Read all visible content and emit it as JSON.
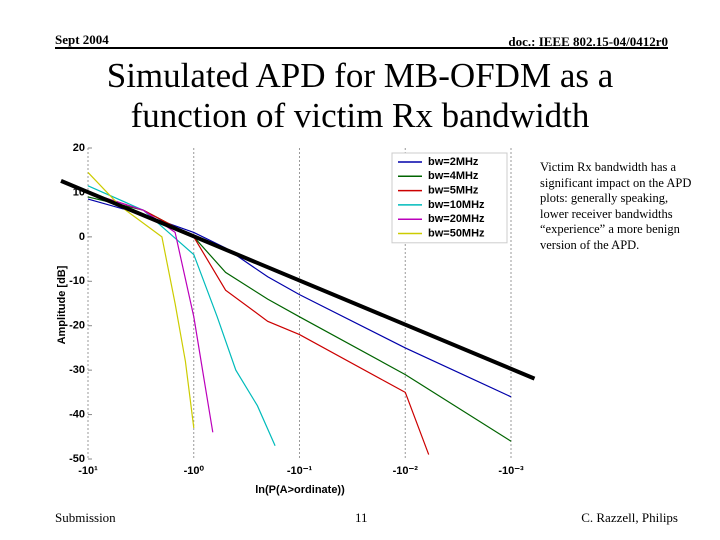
{
  "header": {
    "left": "Sept 2004",
    "right": "doc.: IEEE 802.15-04/0412r0"
  },
  "title_lines": [
    "Simulated APD for MB-OFDM as a",
    "function of victim Rx bandwidth"
  ],
  "side_text": "Victim Rx bandwidth has a significant impact on the APD plots: generally speaking, lower receiver bandwidths “experience” a more benign version of the APD.",
  "footer": {
    "left": "Submission",
    "center": "11",
    "right": "C. Razzell, Philips"
  },
  "chart_data": {
    "type": "line",
    "ylabel": "Amplitude [dB]",
    "xlabel": "ln(P(A>ordinate))",
    "xscale": "log",
    "grid": true,
    "legend": "upper right",
    "xlim": [
      10,
      0.001
    ],
    "xticks": [
      {
        "value": 10,
        "label": "-10¹"
      },
      {
        "value": 1,
        "label": "-10⁰"
      },
      {
        "value": 0.1,
        "label": "-10⁻¹"
      },
      {
        "value": 0.01,
        "label": "-10⁻²"
      },
      {
        "value": 0.001,
        "label": "-10⁻³"
      }
    ],
    "ylim": [
      -50,
      20
    ],
    "yticks": [
      20,
      10,
      0,
      -10,
      -20,
      -30,
      -40,
      -50
    ],
    "series": [
      {
        "name": "bw=2MHz",
        "color": "#0000aa",
        "x": [
          10,
          3,
          1,
          0.5,
          0.2,
          0.1,
          0.01,
          0.001
        ],
        "values": [
          8.5,
          5,
          1,
          -2.5,
          -9,
          -13,
          -25,
          -36
        ]
      },
      {
        "name": "bw=4MHz",
        "color": "#006400",
        "x": [
          10,
          3,
          1,
          0.5,
          0.2,
          0.1,
          0.01,
          0.001
        ],
        "values": [
          9,
          6,
          0,
          -8,
          -14,
          -18,
          -31,
          -46
        ]
      },
      {
        "name": "bw=5MHz",
        "color": "#cc0000",
        "x": [
          10,
          3,
          1,
          0.5,
          0.2,
          0.1,
          0.01,
          0.006
        ],
        "values": [
          10,
          6,
          0,
          -12,
          -19,
          -22,
          -35,
          -49
        ]
      },
      {
        "name": "bw=10MHz",
        "color": "#00bbbb",
        "x": [
          10,
          3,
          1,
          0.6,
          0.4,
          0.25,
          0.17
        ],
        "values": [
          11.5,
          6,
          -4,
          -18,
          -30,
          -38,
          -47
        ]
      },
      {
        "name": "bw=20MHz",
        "color": "#bb00bb",
        "x": [
          10,
          3,
          1.5,
          1,
          0.8,
          0.66
        ],
        "values": [
          10,
          6,
          1,
          -18,
          -32,
          -44
        ]
      },
      {
        "name": "bw=50MHz",
        "color": "#cccc00",
        "x": [
          10,
          5,
          2,
          1.5,
          1.2,
          1
        ],
        "values": [
          14.5,
          7,
          0,
          -15,
          -28,
          -43
        ]
      }
    ],
    "trend_line": {
      "color": "#000000",
      "x": [
        18,
        0.0006
      ],
      "values": [
        12.6,
        -31.9
      ]
    }
  }
}
